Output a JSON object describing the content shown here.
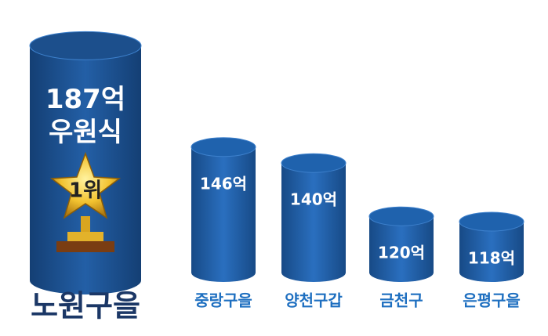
{
  "chart_data": {
    "type": "cylinder-bar",
    "categories": [
      "노원구을",
      "중랑구을",
      "양천구갑",
      "금천구",
      "은평구을"
    ],
    "values": [
      187,
      146,
      140,
      120,
      118
    ],
    "value_labels": [
      "187억",
      "146억",
      "140억",
      "120억",
      "118억"
    ],
    "annotations": [
      "우원식",
      "1위"
    ],
    "color": "#1f62ad",
    "highlight_color": "#1c4f8c"
  }
}
